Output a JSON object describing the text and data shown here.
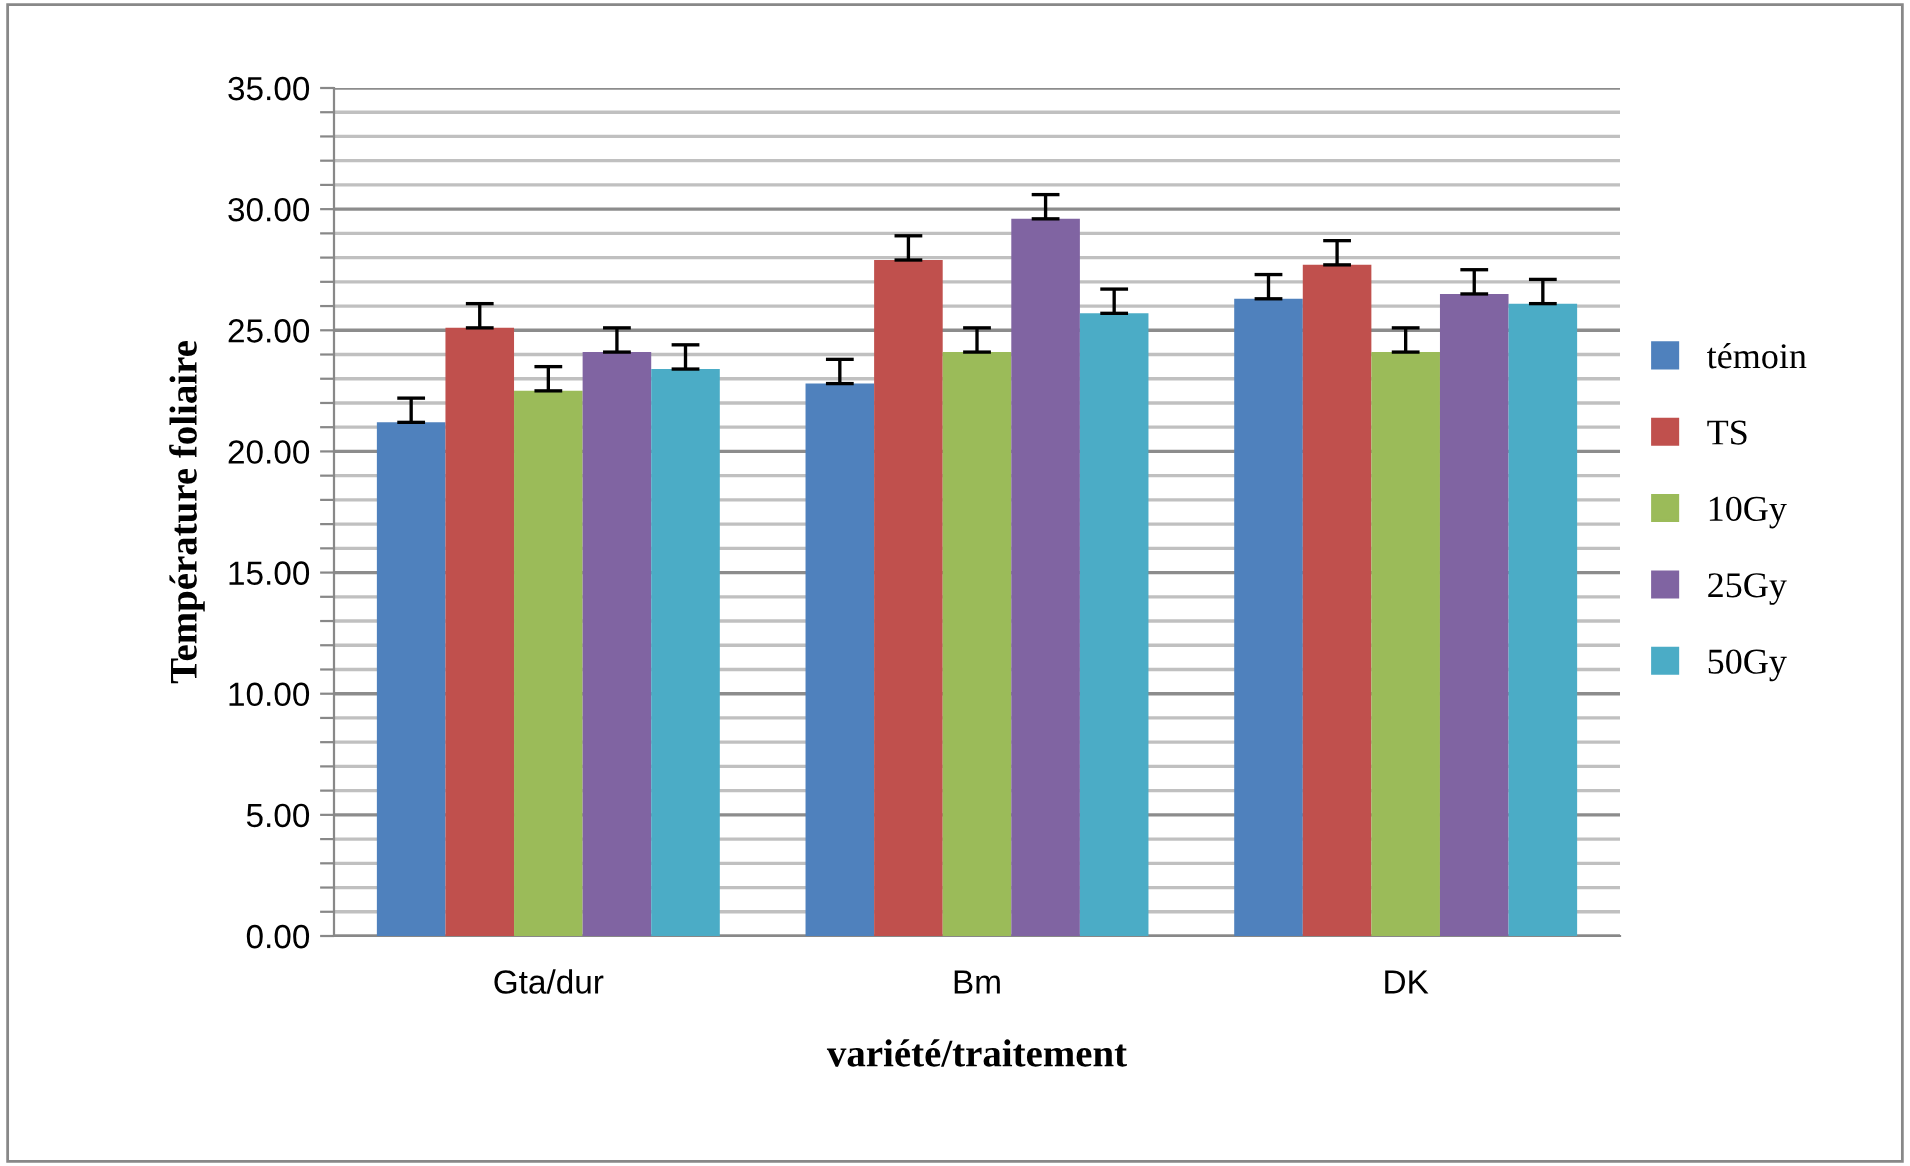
{
  "chart_data": {
    "type": "bar",
    "xlabel": "variété/traitement",
    "ylabel": "Température foliaire",
    "categories": [
      "Gta/dur",
      "Bm",
      "DK"
    ],
    "series": [
      {
        "name": "témoin",
        "color": "#4f81bd",
        "values": [
          21.2,
          22.8,
          26.3
        ],
        "errors": [
          [
            21.2,
            22.2
          ],
          [
            22.8,
            23.8
          ],
          [
            26.3,
            27.3
          ]
        ]
      },
      {
        "name": "TS",
        "color": "#c0504d",
        "values": [
          25.1,
          27.9,
          27.7
        ],
        "errors": [
          [
            25.1,
            26.1
          ],
          [
            27.9,
            28.9
          ],
          [
            27.7,
            28.7
          ]
        ]
      },
      {
        "name": "10Gy",
        "color": "#9bbb59",
        "values": [
          22.5,
          24.1,
          24.1
        ],
        "errors": [
          [
            22.5,
            23.5
          ],
          [
            24.1,
            25.1
          ],
          [
            24.1,
            25.1
          ]
        ]
      },
      {
        "name": "25Gy",
        "color": "#8064a2",
        "values": [
          24.1,
          29.6,
          26.5
        ],
        "errors": [
          [
            24.1,
            25.1
          ],
          [
            29.6,
            30.6
          ],
          [
            26.5,
            27.5
          ]
        ]
      },
      {
        "name": "50Gy",
        "color": "#4bacc6",
        "values": [
          23.4,
          25.7,
          26.1
        ],
        "errors": [
          [
            23.4,
            24.4
          ],
          [
            25.7,
            26.7
          ],
          [
            26.1,
            27.1
          ]
        ]
      }
    ],
    "ylim": [
      0,
      35
    ],
    "yticks": [
      {
        "value": 0,
        "label": "0.00"
      },
      {
        "value": 1,
        "label": null
      },
      {
        "value": 2,
        "label": null
      },
      {
        "value": 3,
        "label": null
      },
      {
        "value": 4,
        "label": null
      },
      {
        "value": 5,
        "label": "5.00"
      },
      {
        "value": 6,
        "label": null
      },
      {
        "value": 7,
        "label": null
      },
      {
        "value": 8,
        "label": null
      },
      {
        "value": 9,
        "label": null
      },
      {
        "value": 10,
        "label": "10.00"
      },
      {
        "value": 11,
        "label": null
      },
      {
        "value": 12,
        "label": null
      },
      {
        "value": 13,
        "label": null
      },
      {
        "value": 14,
        "label": null
      },
      {
        "value": 15,
        "label": "15.00"
      },
      {
        "value": 16,
        "label": null
      },
      {
        "value": 17,
        "label": null
      },
      {
        "value": 18,
        "label": null
      },
      {
        "value": 19,
        "label": null
      },
      {
        "value": 20,
        "label": "20.00"
      },
      {
        "value": 21,
        "label": null
      },
      {
        "value": 22,
        "label": null
      },
      {
        "value": 23,
        "label": null
      },
      {
        "value": 24,
        "label": null
      },
      {
        "value": 25,
        "label": "25.00"
      },
      {
        "value": 26,
        "label": null
      },
      {
        "value": 27,
        "label": null
      },
      {
        "value": 28,
        "label": null
      },
      {
        "value": 29,
        "label": null
      },
      {
        "value": 30,
        "label": "30.00"
      },
      {
        "value": 31,
        "label": null
      },
      {
        "value": 32,
        "label": null
      },
      {
        "value": 33,
        "label": null
      },
      {
        "value": 34,
        "label": null
      },
      {
        "value": 35,
        "label": "35.00"
      }
    ],
    "grid": "y",
    "legend": "right"
  }
}
